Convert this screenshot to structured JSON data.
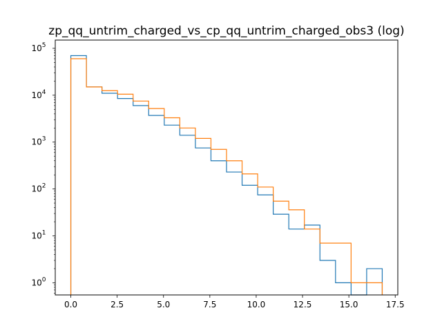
{
  "chart_data": {
    "type": "histogram",
    "title": "zp_qq_untrim_charged_vs_cp_qq_untrim_charged_obs3 (log)",
    "xlabel": "",
    "ylabel": "",
    "xlim": [
      -0.84,
      17.64
    ],
    "ylim": [
      0.55,
      150000
    ],
    "yscale": "log",
    "grid": false,
    "x_ticks": [
      0,
      2.5,
      5,
      7.5,
      10,
      12.5,
      15,
      17.5
    ],
    "x_tick_labels": [
      "0.0",
      "2.5",
      "5.0",
      "7.5",
      "10.0",
      "12.5",
      "15.0",
      "17.5"
    ],
    "y_ticks": [
      1,
      10,
      100,
      1000,
      10000,
      100000
    ],
    "y_tick_labels": [
      {
        "base": "10",
        "exp": "0"
      },
      {
        "base": "10",
        "exp": "1"
      },
      {
        "base": "10",
        "exp": "2"
      },
      {
        "base": "10",
        "exp": "3"
      },
      {
        "base": "10",
        "exp": "4"
      },
      {
        "base": "10",
        "exp": "5"
      }
    ],
    "bin_edges": [
      0,
      0.84,
      1.68,
      2.52,
      3.36,
      4.2,
      5.04,
      5.88,
      6.72,
      7.56,
      8.4,
      9.24,
      10.08,
      10.92,
      11.76,
      12.6,
      13.44,
      14.28,
      15.12,
      15.96,
      16.8
    ],
    "series": [
      {
        "color": "#1f77b4",
        "values": [
          70000,
          15000,
          11000,
          8500,
          6000,
          3700,
          2300,
          1400,
          750,
          400,
          230,
          120,
          75,
          29,
          14,
          17,
          3,
          1,
          0,
          2
        ]
      },
      {
        "color": "#ff7f0e",
        "values": [
          60000,
          15000,
          12500,
          10500,
          7500,
          5200,
          3300,
          2000,
          1200,
          700,
          400,
          210,
          110,
          55,
          36,
          14,
          7,
          7,
          1,
          1
        ]
      }
    ]
  }
}
